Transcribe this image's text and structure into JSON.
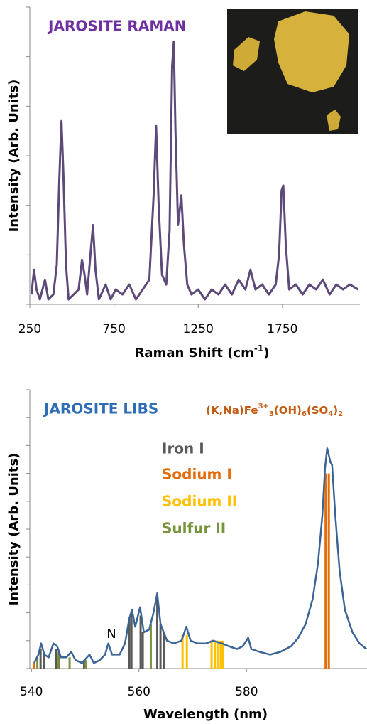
{
  "chart_data": [
    {
      "type": "line",
      "title": "JAROSITE RAMAN",
      "title_color": "#7030a0",
      "x_label": [
        "Raman Shift (cm",
        "-1",
        ")"
      ],
      "y_label": "Intensity (Arb. Units)",
      "color": "#5e4a7a",
      "x": [
        260,
        275,
        290,
        310,
        340,
        360,
        390,
        410,
        425,
        438,
        450,
        465,
        480,
        510,
        540,
        560,
        575,
        590,
        610,
        625,
        640,
        660,
        700,
        730,
        760,
        800,
        840,
        880,
        920,
        960,
        985,
        1000,
        1015,
        1035,
        1060,
        1080,
        1095,
        1105,
        1115,
        1130,
        1150,
        1165,
        1185,
        1210,
        1250,
        1290,
        1330,
        1370,
        1410,
        1450,
        1490,
        1530,
        1560,
        1590,
        1630,
        1670,
        1710,
        1730,
        1745,
        1755,
        1770,
        1790,
        1830,
        1870,
        1910,
        1950,
        1990,
        2030,
        2070,
        2110,
        2150,
        2200
      ],
      "values": [
        0.2,
        0.7,
        0.3,
        0.1,
        0.5,
        0.1,
        0.2,
        0.8,
        2.5,
        3.7,
        2.6,
        0.8,
        0.1,
        0.2,
        0.3,
        0.9,
        0.6,
        0.2,
        1.0,
        1.6,
        0.7,
        0.1,
        0.4,
        0.1,
        0.3,
        0.2,
        0.4,
        0.1,
        0.3,
        0.5,
        2.2,
        3.6,
        2.0,
        0.6,
        0.4,
        1.5,
        4.8,
        5.3,
        3.5,
        1.6,
        2.2,
        1.2,
        0.4,
        0.2,
        0.3,
        0.1,
        0.3,
        0.2,
        0.4,
        0.2,
        0.5,
        0.3,
        0.7,
        0.3,
        0.4,
        0.2,
        0.4,
        1.0,
        2.3,
        2.4,
        1.2,
        0.3,
        0.4,
        0.2,
        0.4,
        0.3,
        0.5,
        0.2,
        0.4,
        0.3,
        0.4,
        0.3
      ],
      "xlim": [
        250,
        2210
      ],
      "xticks": [
        250,
        750,
        1250,
        1750
      ],
      "ylim": [
        0,
        6
      ],
      "yticks": [
        0,
        1,
        2,
        3,
        4,
        5,
        6
      ]
    },
    {
      "type": "line",
      "title": "JAROSITE LIBS",
      "title_color": "#2e6db4",
      "formula": [
        "(K,Na)Fe",
        "3+",
        "3",
        "(OH)",
        "6",
        "(SO",
        "4",
        ")",
        "2"
      ],
      "formula_color": "#c55a11",
      "x_label": "Wavelength (nm)",
      "y_label": "Intensity (Arb. Units)",
      "annotation": "N",
      "color": "#3a6496",
      "x": [
        540.5,
        541.3,
        541.8,
        542.4,
        543.2,
        544.1,
        544.8,
        545.5,
        546.5,
        547.4,
        548.2,
        549.4,
        550.8,
        551.6,
        552.7,
        553.7,
        554.3,
        555.0,
        556.4,
        557.4,
        558.2,
        558.7,
        559.3,
        560.2,
        560.9,
        561.9,
        562.7,
        563.4,
        564.0,
        565.2,
        566.5,
        567.9,
        568.8,
        569.6,
        570.9,
        572.5,
        573.8,
        575.4,
        576.7,
        578.2,
        579.3,
        580.3,
        580.9,
        582.4,
        584.4,
        586.3,
        588.3,
        589.6,
        591.0,
        592.3,
        593.3,
        594.1,
        594.6,
        595.0,
        595.6,
        595.9,
        596.5,
        597.3,
        598.3,
        599.7,
        601.0,
        602.3
      ],
      "values": [
        0.2,
        0.5,
        0.9,
        0.5,
        0.4,
        0.9,
        0.8,
        0.4,
        0.4,
        0.6,
        0.3,
        0.2,
        0.5,
        0.2,
        0.3,
        0.5,
        0.9,
        0.5,
        0.5,
        0.9,
        1.8,
        2.1,
        1.5,
        2.2,
        1.3,
        1.4,
        2.0,
        2.7,
        1.6,
        1.0,
        0.9,
        1.0,
        1.5,
        1.0,
        0.9,
        0.9,
        1.0,
        0.9,
        0.8,
        0.7,
        0.8,
        1.1,
        0.7,
        0.6,
        0.5,
        0.6,
        0.8,
        1.1,
        1.6,
        2.5,
        3.8,
        5.5,
        7.2,
        7.9,
        7.4,
        7.3,
        5.5,
        3.5,
        2.1,
        1.3,
        0.9,
        0.7
      ],
      "lines": [
        {
          "name": "Iron I",
          "color": "#595959",
          "x": [
            541.7,
            542.4,
            544.6,
            545.1,
            549.8,
            558.2,
            558.6,
            560.3,
            560.7,
            563.4,
            564.0,
            564.7
          ],
          "values": [
            0.7,
            0.5,
            0.7,
            0.6,
            0.3,
            1.8,
            2.0,
            1.9,
            1.3,
            2.5,
            1.6,
            1.3
          ]
        },
        {
          "name": "Sodium I",
          "color": "#e46c0a",
          "x": [
            540.5,
            594.7,
            595.3
          ],
          "values": [
            0.2,
            7.0,
            7.0
          ]
        },
        {
          "name": "Sodium II",
          "color": "#ffc000",
          "x": [
            568.1,
            568.9,
            573.5,
            574.1,
            574.6,
            575.2,
            575.6
          ],
          "values": [
            1.2,
            1.2,
            1.0,
            1.0,
            1.0,
            1.0,
            1.0
          ]
        },
        {
          "name": "Sulfur II",
          "color": "#77933c",
          "x": [
            541.1,
            545.0,
            547.1,
            550.1,
            562.2
          ],
          "values": [
            0.4,
            0.5,
            0.4,
            0.3,
            1.6
          ]
        }
      ],
      "xlim": [
        539.7,
        602.4
      ],
      "xticks": [
        540,
        560,
        580
      ],
      "ylim": [
        0,
        10
      ],
      "yticks": [
        0,
        1,
        2,
        3,
        4,
        5,
        6,
        7,
        8,
        9,
        10
      ]
    }
  ]
}
